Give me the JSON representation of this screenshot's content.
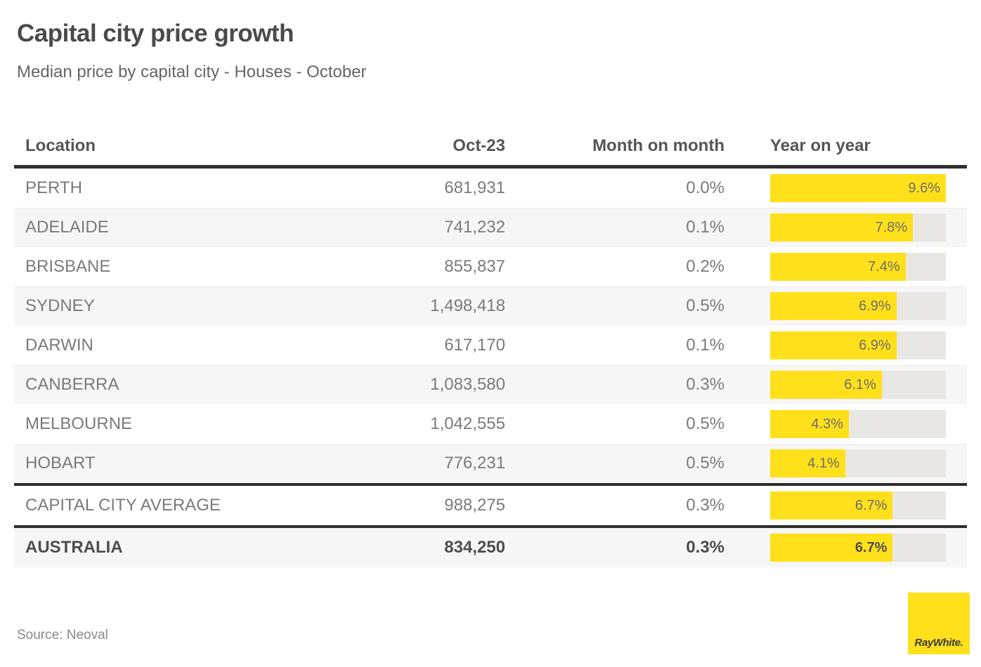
{
  "header": {
    "title": "Capital city price growth",
    "subtitle": "Median price by capital city - Houses - October"
  },
  "table": {
    "columns": {
      "location": "Location",
      "oct23": "Oct-23",
      "mom": "Month on month",
      "yoy": "Year on year"
    },
    "bar_axis_max": 9.6,
    "rows": [
      {
        "location": "PERTH",
        "oct23": "681,931",
        "mom": "0.0%",
        "yoy_label": "9.6%",
        "yoy_value": 9.6,
        "bold": false,
        "section_break": false
      },
      {
        "location": "ADELAIDE",
        "oct23": "741,232",
        "mom": "0.1%",
        "yoy_label": "7.8%",
        "yoy_value": 7.8,
        "bold": false,
        "section_break": false
      },
      {
        "location": "BRISBANE",
        "oct23": "855,837",
        "mom": "0.2%",
        "yoy_label": "7.4%",
        "yoy_value": 7.4,
        "bold": false,
        "section_break": false
      },
      {
        "location": "SYDNEY",
        "oct23": "1,498,418",
        "mom": "0.5%",
        "yoy_label": "6.9%",
        "yoy_value": 6.9,
        "bold": false,
        "section_break": false
      },
      {
        "location": "DARWIN",
        "oct23": "617,170",
        "mom": "0.1%",
        "yoy_label": "6.9%",
        "yoy_value": 6.9,
        "bold": false,
        "section_break": false
      },
      {
        "location": "CANBERRA",
        "oct23": "1,083,580",
        "mom": "0.3%",
        "yoy_label": "6.1%",
        "yoy_value": 6.1,
        "bold": false,
        "section_break": false
      },
      {
        "location": "MELBOURNE",
        "oct23": "1,042,555",
        "mom": "0.5%",
        "yoy_label": "4.3%",
        "yoy_value": 4.3,
        "bold": false,
        "section_break": false
      },
      {
        "location": "HOBART",
        "oct23": "776,231",
        "mom": "0.5%",
        "yoy_label": "4.1%",
        "yoy_value": 4.1,
        "bold": false,
        "section_break": false
      },
      {
        "location": "CAPITAL CITY AVERAGE",
        "oct23": "988,275",
        "mom": "0.3%",
        "yoy_label": "6.7%",
        "yoy_value": 6.7,
        "bold": false,
        "section_break": true
      },
      {
        "location": "AUSTRALIA",
        "oct23": "834,250",
        "mom": "0.3%",
        "yoy_label": "6.7%",
        "yoy_value": 6.7,
        "bold": true,
        "section_break": true
      }
    ]
  },
  "footer": {
    "source": "Source: Neoval",
    "logo_text": "RayWhite."
  },
  "colors": {
    "accent_yellow": "#ffe01a",
    "bar_track_gray": "#e8e7e4",
    "border_dark": "#2e2e2e",
    "row_alt_bg": "#f6f6f6",
    "body_text": "#7a7a7a",
    "heading_text": "#4a4a4a"
  },
  "chart_data": {
    "type": "bar",
    "title": "Capital city price growth",
    "subtitle": "Median price by capital city - Houses - October",
    "categories": [
      "PERTH",
      "ADELAIDE",
      "BRISBANE",
      "SYDNEY",
      "DARWIN",
      "CANBERRA",
      "MELBOURNE",
      "HOBART",
      "CAPITAL CITY AVERAGE",
      "AUSTRALIA"
    ],
    "series": [
      {
        "name": "Oct-23 median price ($)",
        "values": [
          681931,
          741232,
          855837,
          1498418,
          617170,
          1083580,
          1042555,
          776231,
          988275,
          834250
        ]
      },
      {
        "name": "Month on month (%)",
        "values": [
          0.0,
          0.1,
          0.2,
          0.5,
          0.1,
          0.3,
          0.5,
          0.5,
          0.3,
          0.3
        ]
      },
      {
        "name": "Year on year (%)",
        "values": [
          9.6,
          7.8,
          7.4,
          6.9,
          6.9,
          6.1,
          4.3,
          4.1,
          6.7,
          6.7
        ]
      }
    ],
    "bar_series_shown_as_bars": "Year on year (%)",
    "bar_axis_range": [
      0,
      9.6
    ],
    "grid": false,
    "legend_position": "none",
    "source": "Source: Neoval"
  }
}
